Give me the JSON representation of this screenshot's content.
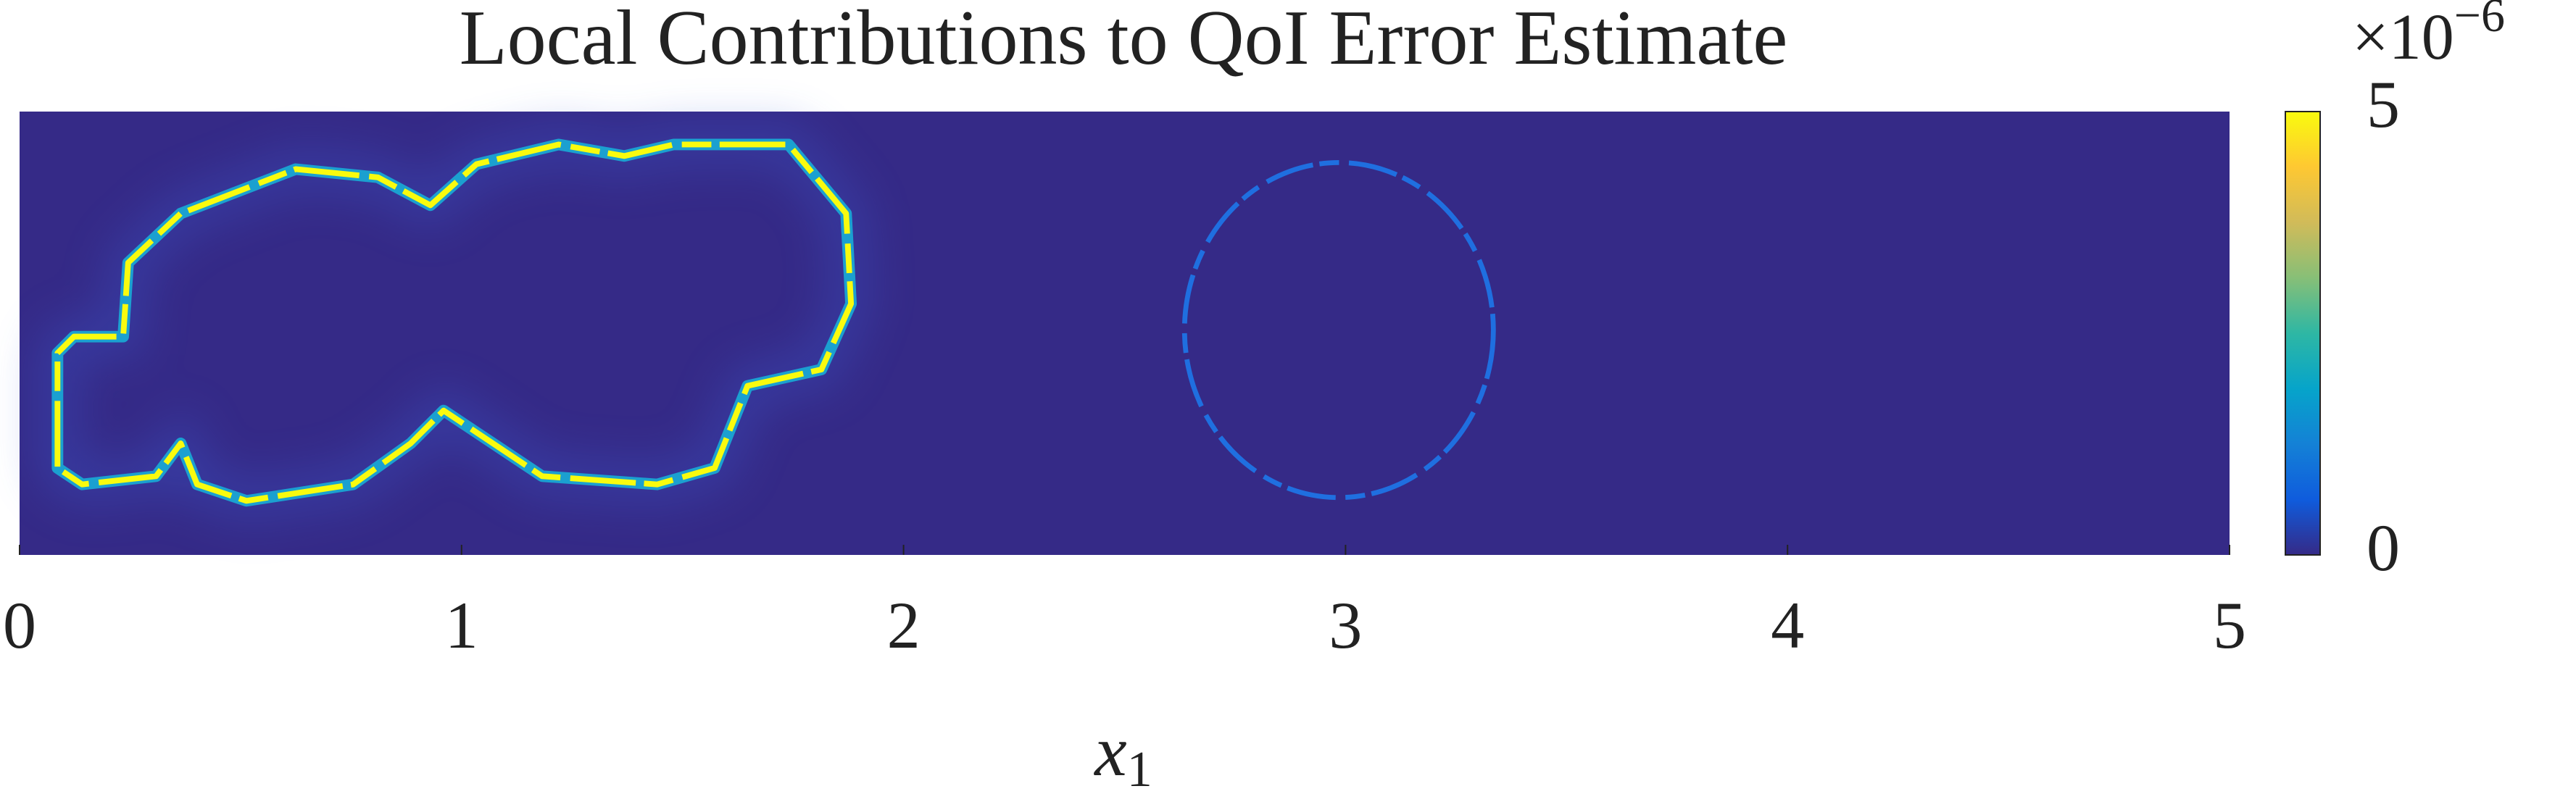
{
  "chart_data": {
    "type": "heatmap",
    "title": "Local Contributions to QoI Error Estimate",
    "xlabel": "x",
    "xlabel_subscript": "1",
    "xlim": [
      0,
      5
    ],
    "xticks": [
      0,
      1,
      2,
      3,
      4,
      5
    ],
    "colorbar": {
      "clim": [
        0,
        5
      ],
      "ticks": [
        0,
        5
      ],
      "multiplier": "×10",
      "exponent": "−6",
      "colors": [
        "#352a87",
        "#0f5cdd",
        "#1481d6",
        "#06a4ca",
        "#2eb7a4",
        "#87bf77",
        "#d1bb59",
        "#fec832",
        "#f9fb0e"
      ]
    }
  }
}
